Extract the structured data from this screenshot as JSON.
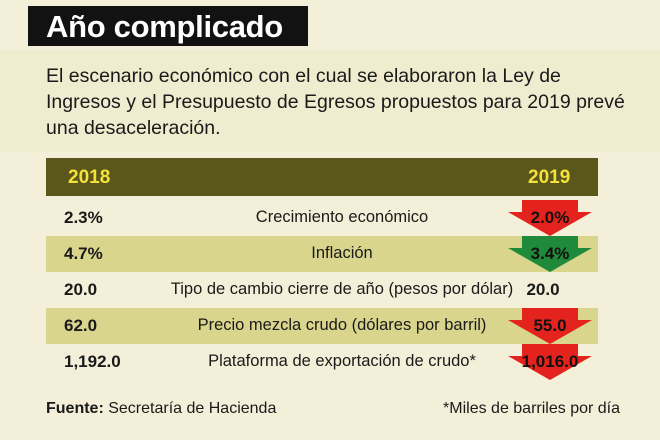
{
  "title": "Año complicado",
  "lead": "El escenario económico con el cual se elaboraron la Ley de Ingresos y el Presupuesto de Egresos propuestos para 2019 prevé una desaceleración.",
  "table": {
    "header": {
      "col_2018": "2018",
      "col_2019": "2019"
    },
    "rows": [
      {
        "v2018": "2.3%",
        "label": "Crecimiento económico",
        "v2019": "2.0%",
        "trend": "down",
        "color": "#e4231e"
      },
      {
        "v2018": "4.7%",
        "label": "Inflación",
        "v2019": "3.4%",
        "trend": "down",
        "color": "#1f8a3a"
      },
      {
        "v2018": "20.0",
        "label": "Tipo de cambio cierre de año (pesos por dólar)",
        "v2019": "20.0",
        "trend": "none",
        "color": ""
      },
      {
        "v2018": "62.0",
        "label": "Precio mezcla crudo (dólares por barril)",
        "v2019": "55.0",
        "trend": "down",
        "color": "#e4231e"
      },
      {
        "v2018": "1,192.0",
        "label": "Plataforma de exportación de crudo*",
        "v2019": "1,016.0",
        "trend": "down",
        "color": "#e4231e"
      }
    ]
  },
  "footer": {
    "source_label": "Fuente:",
    "source_text": "Secretaría de Hacienda",
    "note": "*Miles de barriles por día"
  }
}
